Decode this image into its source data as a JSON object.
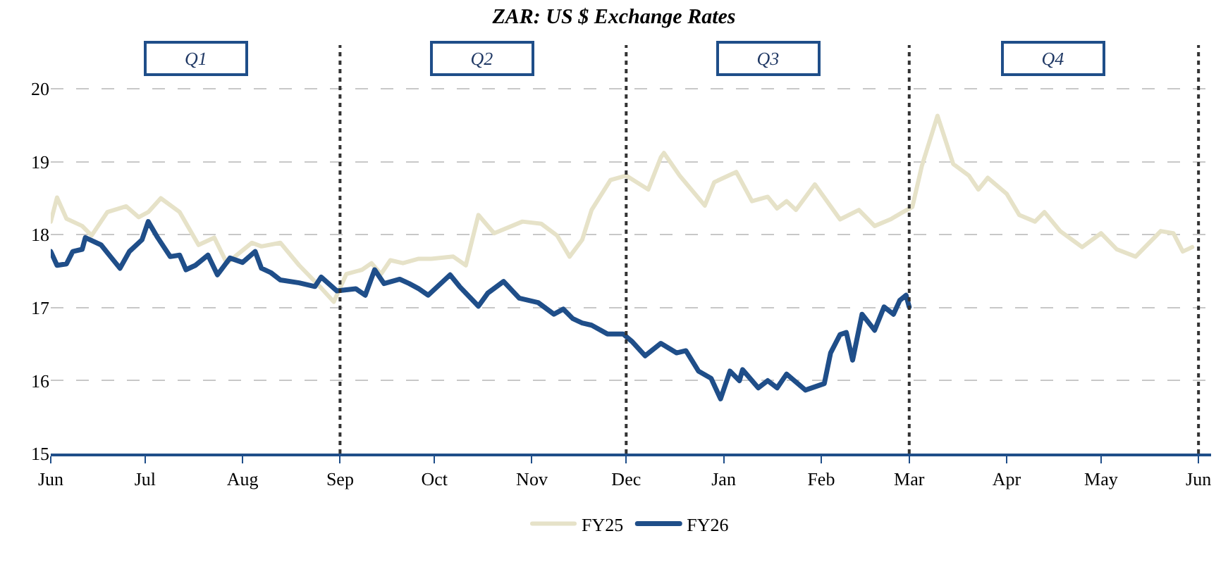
{
  "chart_data": {
    "type": "line",
    "title": "ZAR: US $ Exchange Rates",
    "xlim": [
      "2025-06-01",
      "2026-06-05"
    ],
    "xticks": [
      {
        "value": "2025-06-01",
        "label": "Jun"
      },
      {
        "value": "2025-07-01",
        "label": "Jul"
      },
      {
        "value": "2025-08-01",
        "label": "Aug"
      },
      {
        "value": "2025-09-01",
        "label": "Sep"
      },
      {
        "value": "2025-10-01",
        "label": "Oct"
      },
      {
        "value": "2025-11-01",
        "label": "Nov"
      },
      {
        "value": "2025-12-01",
        "label": "Dec"
      },
      {
        "value": "2026-01-01",
        "label": "Jan"
      },
      {
        "value": "2026-02-01",
        "label": "Feb"
      },
      {
        "value": "2026-03-01",
        "label": "Mar"
      },
      {
        "value": "2026-04-01",
        "label": "Apr"
      },
      {
        "value": "2026-05-01",
        "label": "May"
      },
      {
        "value": "2026-06-01",
        "label": "Jun"
      }
    ],
    "ylim": [
      15,
      20.6
    ],
    "yticks": [
      15,
      16,
      17,
      18,
      19,
      20
    ],
    "grid": "y",
    "legend": "bottom",
    "marker": "none",
    "series": [
      {
        "name": "FY25",
        "color": "#e6e2c8",
        "x": [
          "2025-06-01",
          "2025-06-03",
          "2025-06-06",
          "2025-06-11",
          "2025-06-14",
          "2025-06-19",
          "2025-06-25",
          "2025-06-29",
          "2025-07-02",
          "2025-07-06",
          "2025-07-12",
          "2025-07-18",
          "2025-07-23",
          "2025-07-27",
          "2025-08-04",
          "2025-08-07",
          "2025-08-13",
          "2025-08-19",
          "2025-08-26",
          "2025-08-30",
          "2025-09-03",
          "2025-09-08",
          "2025-09-11",
          "2025-09-14",
          "2025-09-17",
          "2025-09-21",
          "2025-09-26",
          "2025-09-30",
          "2025-10-07",
          "2025-10-11",
          "2025-10-15",
          "2025-10-20",
          "2025-10-29",
          "2025-11-04",
          "2025-11-09",
          "2025-11-13",
          "2025-11-17",
          "2025-11-20",
          "2025-11-26",
          "2025-12-01",
          "2025-12-08",
          "2025-12-12",
          "2025-12-13",
          "2025-12-18",
          "2025-12-26",
          "2025-12-29",
          "2026-01-05",
          "2026-01-10",
          "2026-01-15",
          "2026-01-18",
          "2026-01-21",
          "2026-01-24",
          "2026-01-30",
          "2026-02-07",
          "2026-02-13",
          "2026-02-18",
          "2026-02-23",
          "2026-02-27",
          "2026-03-02",
          "2026-03-05",
          "2026-03-10",
          "2026-03-15",
          "2026-03-20",
          "2026-03-23",
          "2026-03-26",
          "2026-04-01",
          "2026-04-05",
          "2026-04-10",
          "2026-04-13",
          "2026-04-18",
          "2026-04-25",
          "2026-05-01",
          "2026-05-06",
          "2026-05-12",
          "2026-05-20",
          "2026-05-24",
          "2026-05-27",
          "2026-05-30"
        ],
        "values": [
          18.18,
          18.51,
          18.22,
          18.12,
          17.99,
          18.31,
          18.39,
          18.24,
          18.31,
          18.5,
          18.31,
          17.86,
          17.96,
          17.61,
          17.89,
          17.84,
          17.89,
          17.58,
          17.27,
          17.08,
          17.46,
          17.52,
          17.61,
          17.46,
          17.65,
          17.61,
          17.67,
          17.67,
          17.7,
          17.58,
          18.27,
          18.02,
          18.18,
          18.15,
          17.99,
          17.7,
          17.93,
          18.34,
          18.75,
          18.81,
          18.62,
          19.06,
          19.12,
          18.81,
          18.4,
          18.72,
          18.86,
          18.46,
          18.52,
          18.36,
          18.46,
          18.34,
          18.69,
          18.21,
          18.34,
          18.12,
          18.21,
          18.31,
          18.38,
          18.94,
          19.63,
          18.97,
          18.81,
          18.62,
          18.78,
          18.56,
          18.27,
          18.18,
          18.31,
          18.05,
          17.83,
          18.02,
          17.8,
          17.7,
          18.05,
          18.02,
          17.77,
          17.83
        ]
      },
      {
        "name": "FY26",
        "color": "#1f4e89",
        "x": [
          "2025-06-01",
          "2025-06-03",
          "2025-06-06",
          "2025-06-08",
          "2025-06-11",
          "2025-06-12",
          "2025-06-17",
          "2025-06-20",
          "2025-06-23",
          "2025-06-26",
          "2025-06-30",
          "2025-07-02",
          "2025-07-05",
          "2025-07-09",
          "2025-07-12",
          "2025-07-14",
          "2025-07-17",
          "2025-07-21",
          "2025-07-24",
          "2025-07-28",
          "2025-08-01",
          "2025-08-05",
          "2025-08-07",
          "2025-08-10",
          "2025-08-13",
          "2025-08-19",
          "2025-08-24",
          "2025-08-26",
          "2025-08-31",
          "2025-09-06",
          "2025-09-09",
          "2025-09-12",
          "2025-09-15",
          "2025-09-20",
          "2025-09-23",
          "2025-09-26",
          "2025-09-29",
          "2025-10-06",
          "2025-10-09",
          "2025-10-15",
          "2025-10-18",
          "2025-10-23",
          "2025-10-28",
          "2025-11-03",
          "2025-11-08",
          "2025-11-11",
          "2025-11-14",
          "2025-11-17",
          "2025-11-20",
          "2025-11-25",
          "2025-11-30",
          "2025-12-03",
          "2025-12-07",
          "2025-12-12",
          "2025-12-17",
          "2025-12-20",
          "2025-12-24",
          "2025-12-28",
          "2025-12-31",
          "2026-01-03",
          "2026-01-06",
          "2026-01-07",
          "2026-01-12",
          "2026-01-15",
          "2026-01-18",
          "2026-01-21",
          "2026-01-27",
          "2026-02-02",
          "2026-02-04",
          "2026-02-07",
          "2026-02-09",
          "2026-02-11",
          "2026-02-14",
          "2026-02-18",
          "2026-02-21",
          "2026-02-24",
          "2026-02-26",
          "2026-02-28",
          "2026-03-01"
        ],
        "values": [
          17.77,
          17.58,
          17.6,
          17.77,
          17.8,
          17.96,
          17.86,
          17.7,
          17.54,
          17.77,
          17.93,
          18.18,
          17.96,
          17.7,
          17.72,
          17.52,
          17.58,
          17.72,
          17.45,
          17.68,
          17.62,
          17.77,
          17.54,
          17.48,
          17.38,
          17.34,
          17.29,
          17.42,
          17.23,
          17.26,
          17.17,
          17.52,
          17.33,
          17.39,
          17.33,
          17.26,
          17.17,
          17.45,
          17.29,
          17.02,
          17.2,
          17.36,
          17.13,
          17.07,
          16.91,
          16.98,
          16.85,
          16.79,
          16.76,
          16.64,
          16.64,
          16.53,
          16.34,
          16.51,
          16.38,
          16.41,
          16.13,
          16.03,
          15.75,
          16.13,
          16,
          16.15,
          15.9,
          16,
          15.9,
          16.09,
          15.87,
          15.96,
          16.38,
          16.63,
          16.66,
          16.28,
          16.91,
          16.69,
          17.01,
          16.91,
          17.1,
          17.17,
          17.01
        ]
      }
    ],
    "ref_lines": [
      {
        "axis": "x",
        "value": "2025-09-01",
        "color": "#333333",
        "line_style": "dotted"
      },
      {
        "axis": "x",
        "value": "2025-12-01",
        "color": "#333333",
        "line_style": "dotted"
      },
      {
        "axis": "x",
        "value": "2026-03-01",
        "color": "#333333",
        "line_style": "dotted"
      },
      {
        "axis": "x",
        "value": "2026-06-01",
        "color": "#333333",
        "line_style": "dotted"
      }
    ],
    "annotations": [
      "Q1",
      "Q2",
      "Q3",
      "Q4"
    ]
  }
}
